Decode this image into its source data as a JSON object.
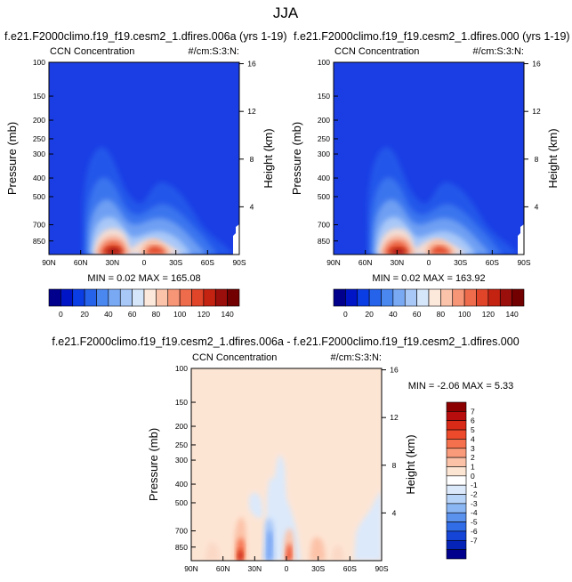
{
  "figure": {
    "title": "JJA",
    "panel_a": {
      "case_title": "f.e21.F2000climo.f19_f19.cesm2_1.dfires.006a (yrs 1-19)",
      "var_label": "CCN Concentration",
      "units": "#/cm:S:3:N:",
      "stats": "MIN =   0.02   MAX = 165.08"
    },
    "panel_b": {
      "case_title": "f.e21.F2000climo.f19_f19.cesm2_1.dfires.000 (yrs 1-19)",
      "var_label": "CCN Concentration",
      "units": "#/cm:S:3:N:",
      "stats": "MIN =   0.02   MAX = 163.92"
    },
    "panel_diff": {
      "case_title": "f.e21.F2000climo.f19_f19.cesm2_1.dfires.006a - f.e21.F2000climo.f19_f19.cesm2_1.dfires.000",
      "var_label": "CCN Concentration",
      "units": "#/cm:S:3:N:",
      "stats": "MIN =  -2.06   MAX =   5.33"
    }
  },
  "chart_data": [
    {
      "type": "heatmap",
      "title": "CCN Concentration",
      "xlabel": "",
      "ylabel": "Pressure (mb)",
      "y2label": "Height (km)",
      "x_ticks": [
        "90N",
        "60N",
        "30N",
        "0",
        "30S",
        "60S",
        "90S"
      ],
      "y_ticks": [
        "100",
        "150",
        "200",
        "250",
        "300",
        "400",
        "500",
        "700",
        "850"
      ],
      "y2_ticks": [
        "16",
        "12",
        "8",
        "4"
      ],
      "xlim": [
        90,
        -90
      ],
      "ylim": [
        1000,
        100
      ],
      "y_scale": "log",
      "colorbar_ticks": [
        "0",
        "20",
        "40",
        "60",
        "80",
        "100",
        "120",
        "140"
      ],
      "contour_levels": [
        0,
        10,
        20,
        30,
        40,
        50,
        60,
        70,
        80,
        90,
        100,
        110,
        120,
        130,
        140
      ],
      "colors": [
        "#00008c",
        "#0016c6",
        "#0b3de4",
        "#2663eb",
        "#4a88f0",
        "#7aa9f4",
        "#a8c8f8",
        "#d6e6fa",
        "#fde8dc",
        "#fbc3aa",
        "#f79577",
        "#ee6b4b",
        "#e0452a",
        "#c42312",
        "#9a0f0b",
        "#730000"
      ],
      "peak_value": 165.08,
      "peak_location": {
        "lat": 33,
        "pressure_mb": 900
      }
    },
    {
      "type": "heatmap",
      "title": "CCN Concentration",
      "xlabel": "",
      "ylabel": "Pressure (mb)",
      "y2label": "Height (km)",
      "x_ticks": [
        "90N",
        "60N",
        "30N",
        "0",
        "30S",
        "60S",
        "90S"
      ],
      "y_ticks": [
        "100",
        "150",
        "200",
        "250",
        "300",
        "400",
        "500",
        "700",
        "850"
      ],
      "y2_ticks": [
        "16",
        "12",
        "8",
        "4"
      ],
      "xlim": [
        90,
        -90
      ],
      "ylim": [
        1000,
        100
      ],
      "y_scale": "log",
      "colorbar_ticks": [
        "0",
        "20",
        "40",
        "60",
        "80",
        "100",
        "120",
        "140"
      ],
      "contour_levels": [
        0,
        10,
        20,
        30,
        40,
        50,
        60,
        70,
        80,
        90,
        100,
        110,
        120,
        130,
        140
      ],
      "colors": [
        "#00008c",
        "#0016c6",
        "#0b3de4",
        "#2663eb",
        "#4a88f0",
        "#7aa9f4",
        "#a8c8f8",
        "#d6e6fa",
        "#fde8dc",
        "#fbc3aa",
        "#f79577",
        "#ee6b4b",
        "#e0452a",
        "#c42312",
        "#9a0f0b",
        "#730000"
      ],
      "peak_value": 163.92,
      "peak_location": {
        "lat": 33,
        "pressure_mb": 900
      }
    },
    {
      "type": "heatmap",
      "title": "CCN Concentration",
      "xlabel": "",
      "ylabel": "Pressure (mb)",
      "y2label": "Height (km)",
      "x_ticks": [
        "90N",
        "60N",
        "30N",
        "0",
        "30S",
        "60S",
        "90S"
      ],
      "y_ticks": [
        "100",
        "150",
        "200",
        "250",
        "300",
        "400",
        "500",
        "700",
        "850"
      ],
      "y2_ticks": [
        "16",
        "12",
        "8",
        "4"
      ],
      "xlim": [
        90,
        -90
      ],
      "ylim": [
        1000,
        100
      ],
      "y_scale": "log",
      "colorbar_ticks": [
        "7",
        "6",
        "5",
        "4",
        "3",
        "2",
        "1",
        "0",
        "-1",
        "-2",
        "-3",
        "-4",
        "-5",
        "-6",
        "-7"
      ],
      "colors": [
        "#8c0000",
        "#b80d0d",
        "#d82a16",
        "#ec4a2a",
        "#f5714d",
        "#f99a7b",
        "#fcc2a8",
        "#fde5d4",
        "#ffffff",
        "#dbe9fb",
        "#b8d3f8",
        "#8bb6f4",
        "#5b92ee",
        "#326de8",
        "#1545d7",
        "#0523b6",
        "#00008c"
      ],
      "min_value": -2.06,
      "max_value": 5.33
    }
  ]
}
